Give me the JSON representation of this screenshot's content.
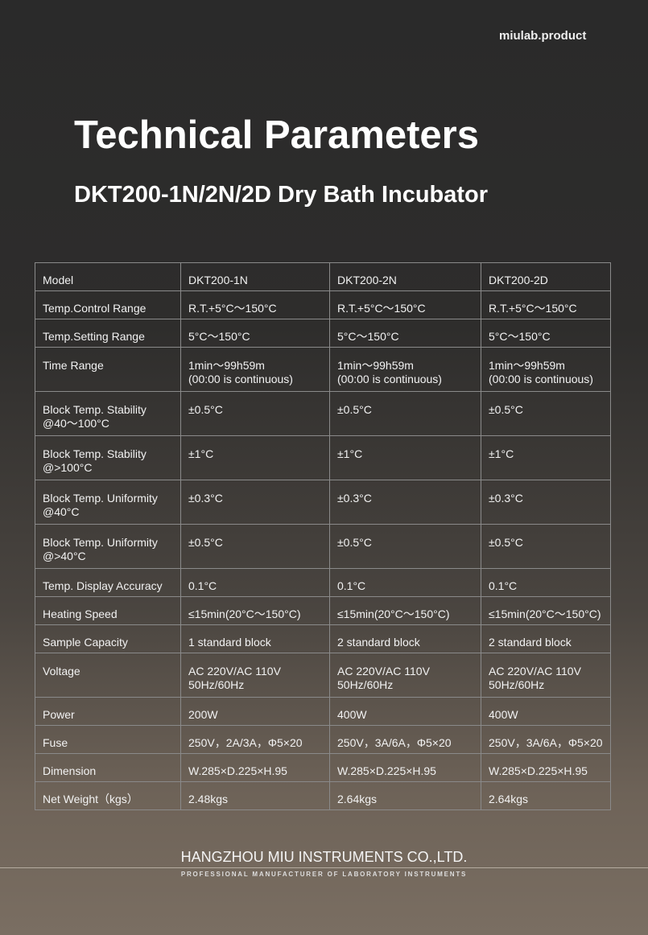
{
  "brand": "miulab.product",
  "title": "Technical Parameters",
  "subtitle": "DKT200-1N/2N/2D Dry Bath Incubator",
  "table": {
    "rows": [
      [
        "Model",
        "DKT200-1N",
        "DKT200-2N",
        "DKT200-2D"
      ],
      [
        "Temp.Control Range",
        "R.T.+5°C～150°C",
        "R.T.+5°C～150°C",
        "R.T.+5°C～150°C"
      ],
      [
        "Temp.Setting Range",
        "5°C～150°C",
        "5°C～150°C",
        "5°C～150°C"
      ],
      [
        "Time Range",
        "1min～99h59m\n(00:00 is continuous)",
        "1min～99h59m\n(00:00 is continuous)",
        "1min～99h59m\n(00:00 is continuous)"
      ],
      [
        "Block Temp. Stability\n@40～100°C",
        "±0.5°C",
        "±0.5°C",
        "±0.5°C"
      ],
      [
        "Block Temp. Stability\n@>100°C",
        "±1°C",
        "±1°C",
        "±1°C"
      ],
      [
        "Block Temp. Uniformity\n@40°C",
        "±0.3°C",
        "±0.3°C",
        "±0.3°C"
      ],
      [
        "Block Temp. Uniformity\n@>40°C",
        "±0.5°C",
        "±0.5°C",
        "±0.5°C"
      ],
      [
        "Temp. Display Accuracy",
        "0.1°C",
        "0.1°C",
        "0.1°C"
      ],
      [
        "Heating Speed",
        "≤15min(20°C～150°C)",
        "≤15min(20°C～150°C)",
        "≤15min(20°C～150°C)"
      ],
      [
        "Sample Capacity",
        "1 standard block",
        "2 standard block",
        "2 standard block"
      ],
      [
        "Voltage",
        "AC 220V/AC 110V\n50Hz/60Hz",
        "AC 220V/AC 110V\n50Hz/60Hz",
        "AC 220V/AC 110V\n50Hz/60Hz"
      ],
      [
        "Power",
        "200W",
        "400W",
        "400W"
      ],
      [
        "Fuse",
        "250V，2A/3A，Φ5×20",
        "250V，3A/6A，Φ5×20",
        "250V，3A/6A，Φ5×20"
      ],
      [
        "Dimension",
        "W.285×D.225×H.95",
        "W.285×D.225×H.95",
        "W.285×D.225×H.95"
      ],
      [
        "Net Weight（kgs）",
        "2.48kgs",
        "2.64kgs",
        "2.64kgs"
      ]
    ]
  },
  "footer": {
    "company": "HANGZHOU MIU INSTRUMENTS CO.,LTD.",
    "tagline": "PROFESSIONAL MANUFACTURER OF LABORATORY INSTRUMENTS"
  }
}
